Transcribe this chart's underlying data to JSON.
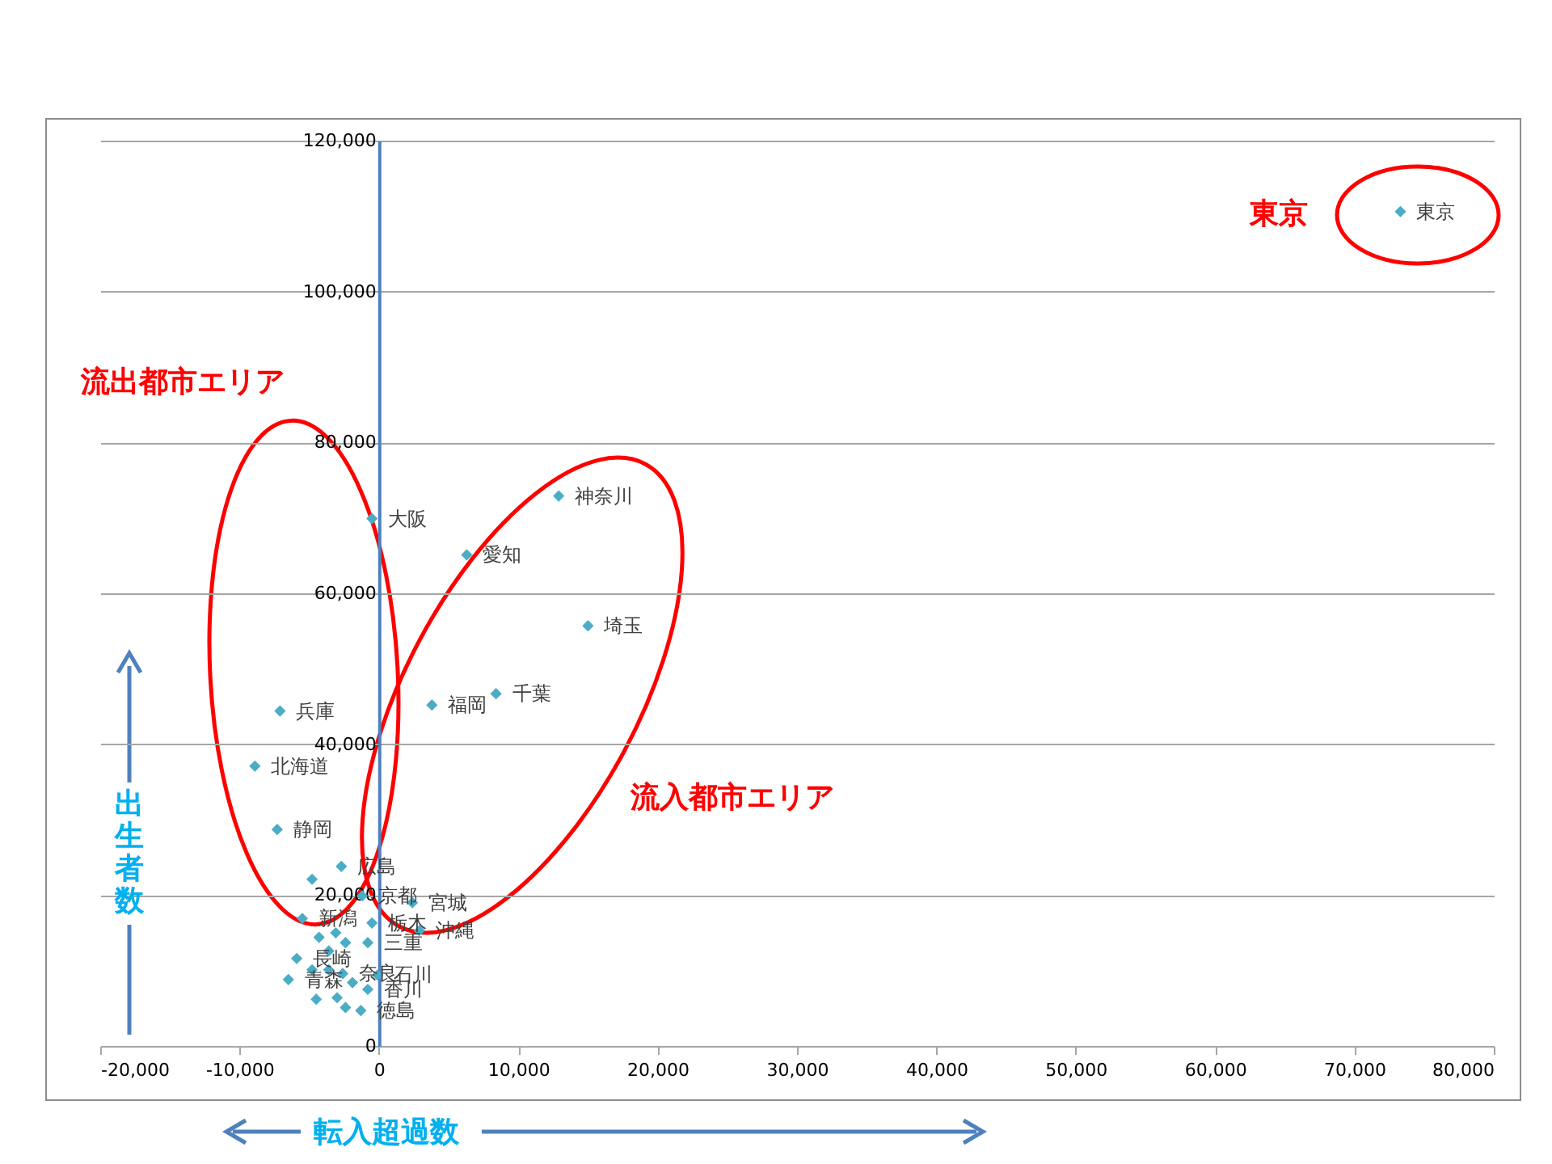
{
  "chart_data": {
    "type": "scatter",
    "xlabel": "転入超過数",
    "ylabel": "出生者数",
    "x": [
      73300,
      12900,
      -500,
      6300,
      15000,
      8400,
      3800,
      -7100,
      -8900,
      -7300,
      -2700,
      -1200,
      2400,
      -5500,
      2900,
      -500,
      -800,
      -5900,
      -6500,
      -2600,
      -100,
      -800,
      -1300,
      -4800,
      -4300,
      -3100,
      -2400,
      -3600,
      -4800,
      -3600,
      -1900,
      -4500,
      -3000,
      -2400
    ],
    "values": [
      110600,
      72900,
      69900,
      65100,
      55700,
      46700,
      45200,
      44400,
      37100,
      28700,
      23800,
      19900,
      19000,
      16900,
      15300,
      16300,
      13700,
      11600,
      8800,
      9600,
      9400,
      7500,
      4700,
      22100,
      14400,
      15000,
      13700,
      12600,
      10100,
      10100,
      8400,
      6200,
      6400,
      5100
    ],
    "color": "#4bacc6",
    "marker": "diamond",
    "grid": "y",
    "xlim": [
      -20000,
      80000
    ],
    "ylim": [
      0,
      120000
    ],
    "xticks": [
      {
        "value": -20000,
        "label": "-20,000"
      },
      {
        "value": -10000,
        "label": "-10,000"
      },
      0,
      {
        "value": 10000,
        "label": "10,000"
      },
      {
        "value": 20000,
        "label": "20,000"
      },
      {
        "value": 30000,
        "label": "30,000"
      },
      {
        "value": 40000,
        "label": "40,000"
      },
      {
        "value": 50000,
        "label": "50,000"
      },
      {
        "value": 60000,
        "label": "60,000"
      },
      {
        "value": 70000,
        "label": "70,000"
      },
      {
        "value": 80000,
        "label": "80,000"
      }
    ],
    "yticks": [
      0,
      {
        "value": 20000,
        "label": "20,000"
      },
      {
        "value": 40000,
        "label": "40,000"
      },
      {
        "value": 60000,
        "label": "60,000"
      },
      {
        "value": 80000,
        "label": "80,000"
      },
      {
        "value": 100000,
        "label": "100,000"
      },
      {
        "value": 120000,
        "label": "120,000"
      }
    ],
    "annotations": [
      "東京",
      "流出都市エリア",
      "流入都市エリア",
      {
        "text": "東京",
        "x": 73300,
        "y": 110600
      },
      {
        "text": "神奈川",
        "x": 12900,
        "y": 72900
      },
      {
        "text": "大阪",
        "x": -500,
        "y": 69900
      },
      {
        "text": "愛知",
        "x": 6300,
        "y": 65100
      },
      {
        "text": "埼玉",
        "x": 15000,
        "y": 55700
      },
      {
        "text": "千葉",
        "x": 8400,
        "y": 46700
      },
      {
        "text": "福岡",
        "x": 3800,
        "y": 45200
      },
      {
        "text": "兵庫",
        "x": -7100,
        "y": 44400
      },
      {
        "text": "北海道",
        "x": -8900,
        "y": 37100
      },
      {
        "text": "静岡",
        "x": -7300,
        "y": 28700
      },
      {
        "text": "広島",
        "x": -2700,
        "y": 23800
      },
      {
        "text": "京都",
        "x": -1200,
        "y": 19900
      },
      {
        "text": "宮城",
        "x": 2400,
        "y": 19000
      },
      {
        "text": "新潟",
        "x": -5500,
        "y": 16900
      },
      {
        "text": "沖縄",
        "x": 2900,
        "y": 15300
      },
      {
        "text": "栃木",
        "x": -500,
        "y": 16300
      },
      {
        "text": "三重",
        "x": -800,
        "y": 13700
      },
      {
        "text": "長崎",
        "x": -5900,
        "y": 11600
      },
      {
        "text": "青森",
        "x": -6500,
        "y": 8800
      },
      {
        "text": "奈良",
        "x": -2600,
        "y": 9600
      },
      {
        "text": "石川",
        "x": -100,
        "y": 9400
      },
      {
        "text": "香川",
        "x": -800,
        "y": 7500
      },
      {
        "text": "徳島",
        "x": -1300,
        "y": 4700
      }
    ]
  }
}
